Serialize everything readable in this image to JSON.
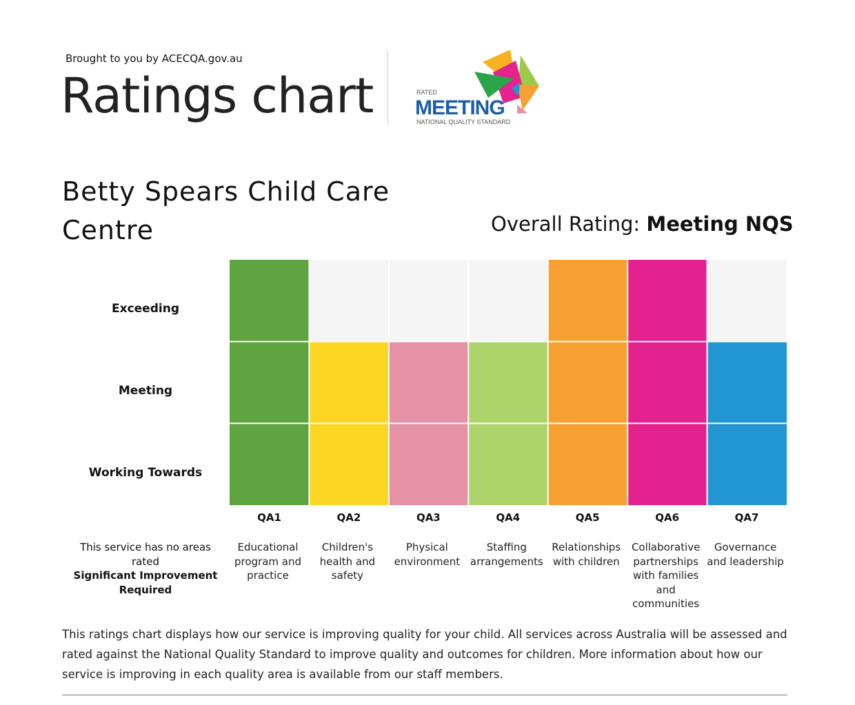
{
  "header": {
    "brought_by": "Brought to you by ACECQA.gov.au",
    "title": "Ratings chart",
    "logo": {
      "small_top": "RATED",
      "main": "MEETING",
      "small_bottom": "NATIONAL QUALITY STANDARD"
    }
  },
  "service_name": "Betty Spears Child Care Centre",
  "overall": {
    "label": "Overall Rating:",
    "value": "Meeting NQS"
  },
  "chart_data": {
    "type": "heatmap",
    "levels": [
      "Working Towards",
      "Meeting",
      "Exceeding"
    ],
    "categories": [
      "QA1",
      "QA2",
      "QA3",
      "QA4",
      "QA5",
      "QA6",
      "QA7"
    ],
    "descriptions": [
      "Educational program and practice",
      "Children's health and safety",
      "Physical environment",
      "Staffing arrangements",
      "Relationships with children",
      "Collaborative partnerships with families and communities",
      "Governance and leadership"
    ],
    "ratings": [
      "Exceeding",
      "Meeting",
      "Meeting",
      "Meeting",
      "Exceeding",
      "Exceeding",
      "Meeting"
    ],
    "colors": [
      "#5ea541",
      "#fdd523",
      "#e692a6",
      "#add46a",
      "#f7a032",
      "#e32290",
      "#2196d3"
    ],
    "empty_color": "#f5f5f5"
  },
  "note": {
    "line1": "This service has no areas rated",
    "line2": "Significant Improvement Required"
  },
  "footer": "This ratings chart displays how our service is improving quality for your child. All services across Australia will be assessed and rated against the National Quality Standard to improve quality and outcomes for children. More information about how our service is improving in each quality area is available from our staff members."
}
